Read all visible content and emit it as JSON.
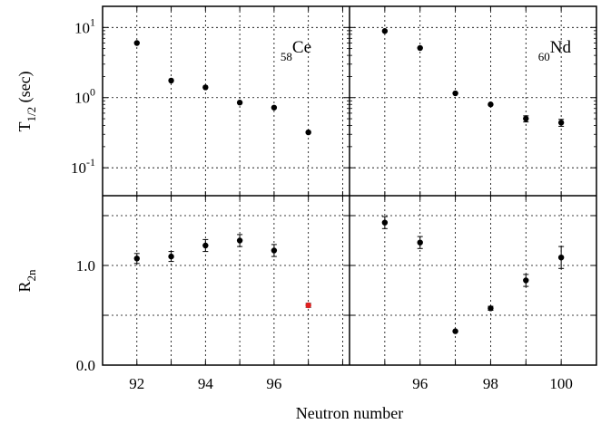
{
  "chart_data": [
    {
      "type": "scatter",
      "panel": "top-left",
      "element_label": {
        "sub": "58",
        "symbol": "Ce"
      },
      "ylabel": {
        "main": "T",
        "sub": "1/2",
        "unit": " (sec)"
      },
      "y_scale": "log",
      "ylim": [
        0.04,
        20
      ],
      "yticks": [
        {
          "value": 10,
          "base": "10",
          "exp": "1"
        },
        {
          "value": 1,
          "base": "10",
          "exp": "0"
        },
        {
          "value": 0.1,
          "base": "10",
          "exp": "-1"
        }
      ],
      "xlim": [
        91,
        98.2
      ],
      "x": [
        92,
        93,
        94,
        95,
        96,
        97
      ],
      "y": [
        6.0,
        1.75,
        1.4,
        0.85,
        0.72,
        0.32
      ],
      "color": "#000000"
    },
    {
      "type": "scatter",
      "panel": "top-right",
      "element_label": {
        "sub": "60",
        "symbol": "Nd"
      },
      "y_scale": "log",
      "ylim": [
        0.04,
        20
      ],
      "xlim": [
        94,
        101
      ],
      "x": [
        95,
        96,
        97,
        98,
        99,
        100
      ],
      "y": [
        8.9,
        5.1,
        1.15,
        0.8,
        0.5,
        0.44
      ],
      "yerr": [
        0,
        0,
        0,
        0,
        0.05,
        0.05
      ],
      "color": "#000000"
    },
    {
      "type": "scatter",
      "panel": "bottom-left",
      "ylabel": {
        "main": "R",
        "sub": "2n"
      },
      "ylim": [
        0.0,
        1.7
      ],
      "yticks": [
        {
          "value": 1.0,
          "label": "1.0"
        },
        {
          "value": 0.0,
          "label": "0.0"
        }
      ],
      "xlim": [
        91,
        98.2
      ],
      "xticks": [
        "92",
        "94",
        "96"
      ],
      "x": [
        92,
        93,
        94,
        95,
        96,
        97
      ],
      "y": [
        1.07,
        1.09,
        1.2,
        1.25,
        1.15,
        0.6
      ],
      "yerr": [
        0.05,
        0.05,
        0.06,
        0.06,
        0.06,
        0.02
      ],
      "colors": [
        "#000000",
        "#000000",
        "#000000",
        "#000000",
        "#000000",
        "#e02020"
      ]
    },
    {
      "type": "scatter",
      "panel": "bottom-right",
      "ylim": [
        0.0,
        1.7
      ],
      "xlim": [
        94,
        101
      ],
      "xticks": [
        "96",
        "98",
        "100"
      ],
      "x": [
        95,
        96,
        97,
        98,
        99,
        100
      ],
      "y": [
        1.43,
        1.23,
        0.34,
        0.57,
        0.85,
        1.08
      ],
      "yerr": [
        0.06,
        0.06,
        0.0,
        0.02,
        0.06,
        0.11
      ],
      "color": "#000000"
    }
  ],
  "xlabel": "Neutron number"
}
